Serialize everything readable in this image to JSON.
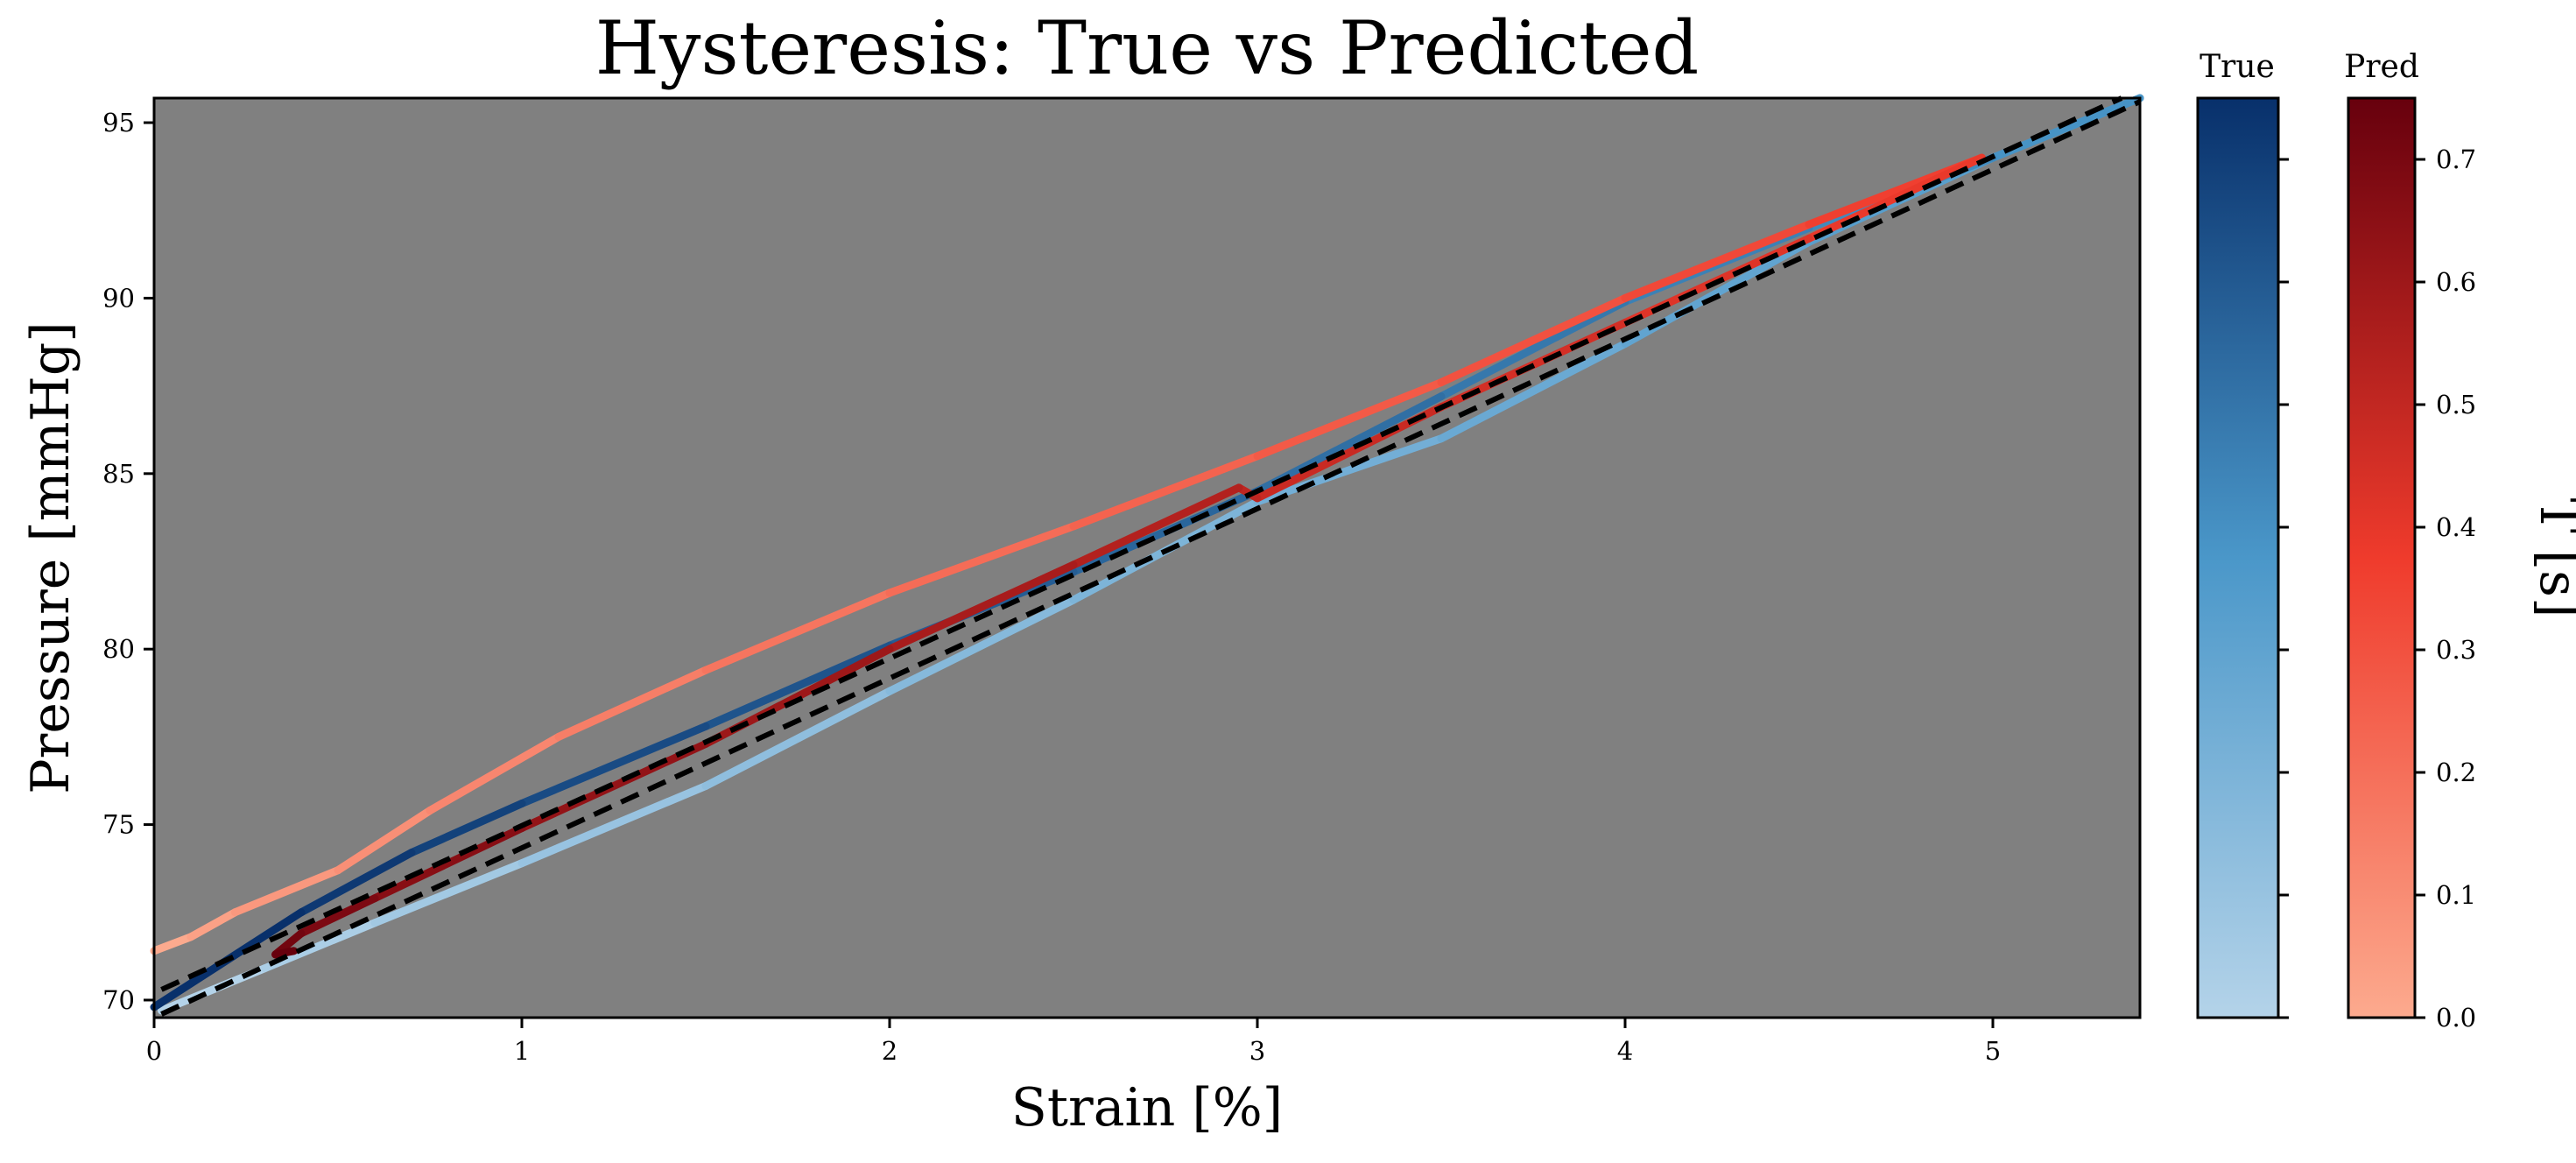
{
  "chart_data": {
    "type": "line",
    "title": "Hysteresis: True vs Predicted",
    "xlabel": "Strain [%]",
    "ylabel": "Pressure [mmHg]",
    "xlim": [
      0,
      5.4
    ],
    "ylim": [
      69.5,
      95.7
    ],
    "xticks": [
      0,
      1,
      2,
      3,
      4,
      5
    ],
    "yticks": [
      70,
      75,
      80,
      85,
      90,
      95
    ],
    "plot_background": "#808080",
    "grid": false,
    "series": [
      {
        "name": "True",
        "colormap": "Blues",
        "t_range": [
          0.0,
          0.75
        ],
        "points": [
          [
            0.02,
            69.7
          ],
          [
            0.3,
            70.9
          ],
          [
            0.6,
            72.2
          ],
          [
            1.0,
            73.9
          ],
          [
            1.5,
            76.1
          ],
          [
            2.0,
            78.8
          ],
          [
            2.5,
            81.4
          ],
          [
            3.0,
            84.2
          ],
          [
            3.5,
            86.0
          ],
          [
            4.0,
            88.7
          ],
          [
            4.5,
            91.6
          ],
          [
            5.0,
            94.0
          ],
          [
            5.4,
            95.7
          ],
          [
            5.0,
            94.0
          ],
          [
            4.5,
            92.0
          ],
          [
            4.0,
            89.9
          ],
          [
            3.5,
            87.2
          ],
          [
            3.0,
            84.5
          ],
          [
            2.5,
            82.2
          ],
          [
            2.0,
            80.1
          ],
          [
            1.5,
            77.8
          ],
          [
            1.0,
            75.6
          ],
          [
            0.7,
            74.2
          ],
          [
            0.4,
            72.5
          ],
          [
            0.0,
            69.8
          ]
        ]
      },
      {
        "name": "Pred",
        "colormap": "Reds",
        "t_range": [
          0.0,
          0.75
        ],
        "points": [
          [
            0.0,
            71.4
          ],
          [
            0.1,
            71.8
          ],
          [
            0.22,
            72.5
          ],
          [
            0.5,
            73.7
          ],
          [
            0.75,
            75.4
          ],
          [
            1.1,
            77.5
          ],
          [
            1.5,
            79.4
          ],
          [
            2.0,
            81.6
          ],
          [
            2.5,
            83.5
          ],
          [
            3.0,
            85.5
          ],
          [
            3.5,
            87.6
          ],
          [
            4.0,
            90.0
          ],
          [
            4.5,
            92.1
          ],
          [
            4.97,
            94.0
          ],
          [
            4.5,
            91.7
          ],
          [
            4.0,
            89.3
          ],
          [
            3.5,
            86.9
          ],
          [
            3.0,
            84.3
          ],
          [
            2.95,
            84.6
          ],
          [
            2.5,
            82.4
          ],
          [
            2.0,
            80.0
          ],
          [
            1.5,
            77.3
          ],
          [
            1.0,
            74.9
          ],
          [
            0.6,
            72.9
          ],
          [
            0.4,
            71.9
          ],
          [
            0.33,
            71.3
          ],
          [
            0.38,
            71.4
          ]
        ]
      },
      {
        "name": "",
        "style": "dashed",
        "color": "#000000",
        "points": [
          [
            0.02,
            70.3
          ],
          [
            5.35,
            95.7
          ]
        ]
      },
      {
        "name": "",
        "style": "dashed",
        "color": "#000000",
        "points": [
          [
            0.02,
            69.6
          ],
          [
            5.4,
            95.6
          ]
        ]
      }
    ],
    "colorbars": [
      {
        "title": "True",
        "colormap": "Blues",
        "range": [
          0.0,
          0.75
        ],
        "ticks": [
          0.0,
          0.1,
          0.2,
          0.3,
          0.4,
          0.5,
          0.6,
          0.7
        ],
        "tick_labels_shown": false
      },
      {
        "title": "Pred",
        "colormap": "Reds",
        "range": [
          0.0,
          0.75
        ],
        "ticks": [
          0.0,
          0.1,
          0.2,
          0.3,
          0.4,
          0.5,
          0.6,
          0.7
        ],
        "tick_labels": [
          "0.0",
          "0.1",
          "0.2",
          "0.3",
          "0.4",
          "0.5",
          "0.6",
          "0.7"
        ],
        "tick_labels_shown": true,
        "label": "T [s]"
      }
    ]
  }
}
